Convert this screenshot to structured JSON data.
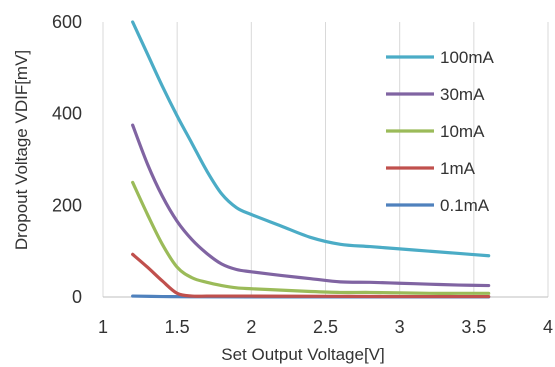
{
  "chart_data": {
    "type": "line",
    "xlabel": "Set Output Voltage[V]",
    "ylabel": "Dropout Voltage VDIF[mV]",
    "xlim": [
      1,
      4
    ],
    "ylim": [
      0,
      600
    ],
    "x_ticks": [
      "1",
      "1.5",
      "2",
      "2.5",
      "3",
      "3.5",
      "4"
    ],
    "y_ticks": [
      "0",
      "200",
      "400",
      "600"
    ],
    "grid": "vertical",
    "legend_position": "right",
    "series": [
      {
        "name": "100mA",
        "color": "#4bacc6",
        "points": [
          [
            1.2,
            600
          ],
          [
            1.3,
            530
          ],
          [
            1.4,
            460
          ],
          [
            1.5,
            395
          ],
          [
            1.6,
            335
          ],
          [
            1.7,
            275
          ],
          [
            1.8,
            225
          ],
          [
            1.9,
            195
          ],
          [
            2.0,
            180
          ],
          [
            2.2,
            155
          ],
          [
            2.4,
            130
          ],
          [
            2.6,
            115
          ],
          [
            2.8,
            110
          ],
          [
            3.0,
            105
          ],
          [
            3.2,
            100
          ],
          [
            3.4,
            95
          ],
          [
            3.6,
            90
          ]
        ]
      },
      {
        "name": "30mA",
        "color": "#8064a2",
        "points": [
          [
            1.2,
            375
          ],
          [
            1.3,
            290
          ],
          [
            1.4,
            220
          ],
          [
            1.5,
            165
          ],
          [
            1.6,
            125
          ],
          [
            1.7,
            95
          ],
          [
            1.8,
            72
          ],
          [
            1.9,
            60
          ],
          [
            2.0,
            55
          ],
          [
            2.2,
            47
          ],
          [
            2.4,
            40
          ],
          [
            2.6,
            33
          ],
          [
            2.8,
            32
          ],
          [
            3.0,
            30
          ],
          [
            3.2,
            28
          ],
          [
            3.4,
            26
          ],
          [
            3.6,
            25
          ]
        ]
      },
      {
        "name": "10mA",
        "color": "#9bbb59",
        "points": [
          [
            1.2,
            250
          ],
          [
            1.3,
            180
          ],
          [
            1.4,
            115
          ],
          [
            1.5,
            65
          ],
          [
            1.6,
            42
          ],
          [
            1.7,
            32
          ],
          [
            1.8,
            25
          ],
          [
            1.9,
            20
          ],
          [
            2.0,
            18
          ],
          [
            2.2,
            15
          ],
          [
            2.4,
            12
          ],
          [
            2.6,
            10
          ],
          [
            2.8,
            10
          ],
          [
            3.0,
            9
          ],
          [
            3.2,
            8
          ],
          [
            3.4,
            8
          ],
          [
            3.6,
            8
          ]
        ]
      },
      {
        "name": "1mA",
        "color": "#c0504d",
        "points": [
          [
            1.2,
            93
          ],
          [
            1.3,
            65
          ],
          [
            1.4,
            35
          ],
          [
            1.5,
            8
          ],
          [
            1.6,
            2
          ],
          [
            1.7,
            2
          ],
          [
            1.8,
            2
          ],
          [
            1.9,
            2
          ],
          [
            2.0,
            2
          ],
          [
            2.5,
            1.5
          ],
          [
            3.0,
            1
          ],
          [
            3.6,
            1
          ]
        ]
      },
      {
        "name": "0.1mA",
        "color": "#4f81bd",
        "points": [
          [
            1.2,
            2
          ],
          [
            1.4,
            1
          ],
          [
            1.6,
            0.5
          ],
          [
            2.0,
            0.3
          ],
          [
            3.0,
            0.2
          ],
          [
            3.6,
            0.2
          ]
        ]
      }
    ]
  }
}
